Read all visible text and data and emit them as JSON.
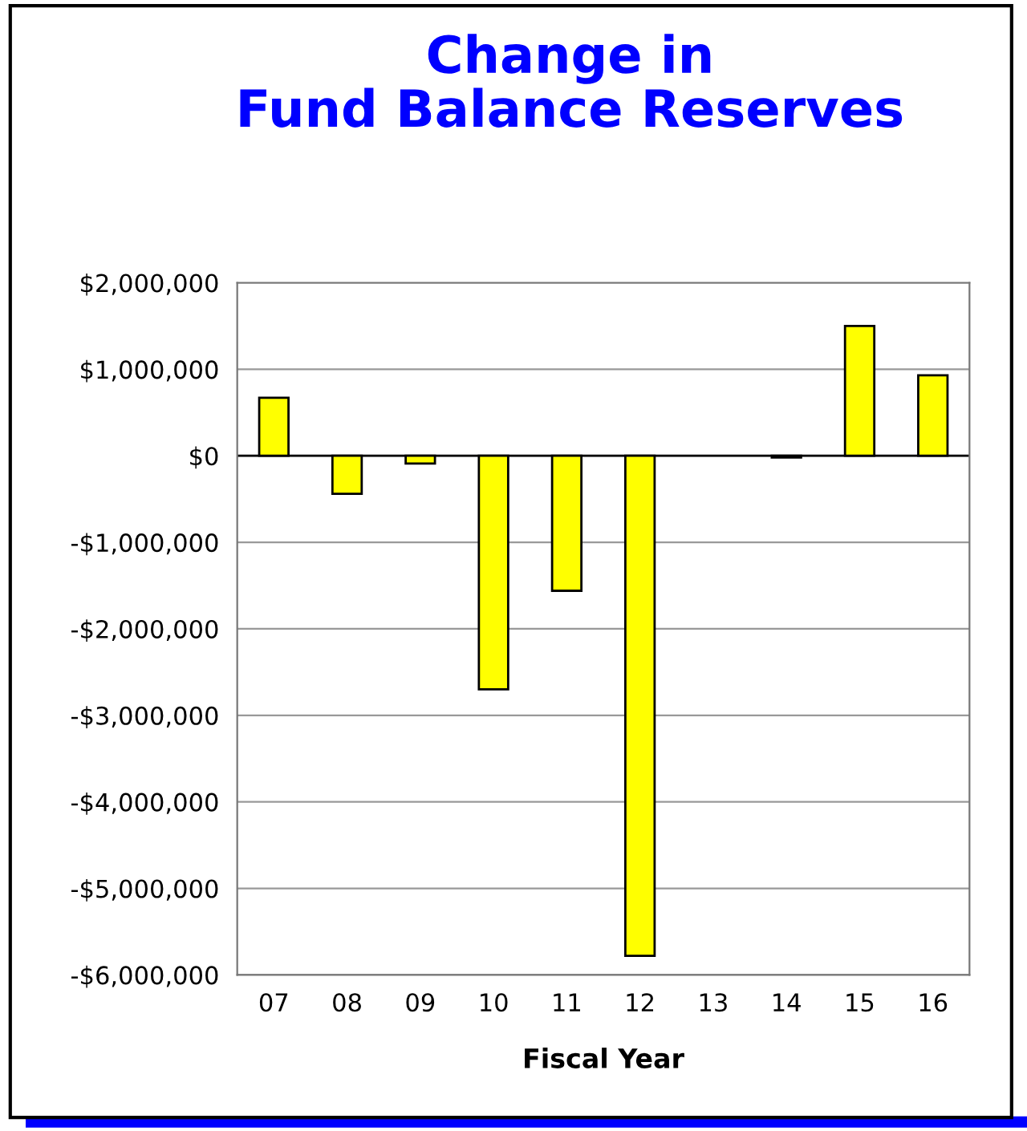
{
  "chart_data": {
    "type": "bar",
    "title": "Change in\nFund Balance Reserves",
    "xlabel": "Fiscal Year",
    "categories": [
      "07",
      "08",
      "09",
      "10",
      "11",
      "12",
      "13",
      "14",
      "15",
      "16"
    ],
    "values": [
      670000,
      -440000,
      -90000,
      -2700000,
      -1560000,
      -5780000,
      null,
      -20000,
      1500000,
      930000
    ],
    "color": "#ffff00",
    "ylim": [
      -6000000,
      2000000
    ],
    "yticks": [
      {
        "value": -6000000,
        "label": "-$6,000,000"
      },
      {
        "value": -5000000,
        "label": "-$5,000,000"
      },
      {
        "value": -4000000,
        "label": "-$4,000,000"
      },
      {
        "value": -3000000,
        "label": "-$3,000,000"
      },
      {
        "value": -2000000,
        "label": "-$2,000,000"
      },
      {
        "value": -1000000,
        "label": "-$1,000,000"
      },
      {
        "value": 0,
        "label": "$0"
      },
      {
        "value": 1000000,
        "label": "$1,000,000"
      },
      {
        "value": 2000000,
        "label": "$2,000,000"
      }
    ],
    "grid": "y"
  }
}
